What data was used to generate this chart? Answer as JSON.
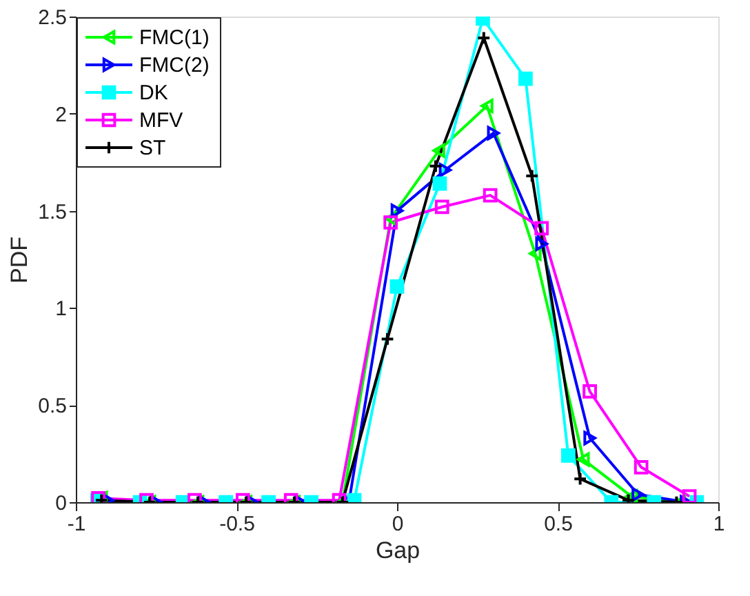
{
  "chart_data": {
    "type": "line",
    "xlabel": "Gap",
    "ylabel": "PDF",
    "xlim": [
      -1,
      1
    ],
    "ylim": [
      0,
      2.5
    ],
    "xticks": [
      -1,
      -0.5,
      0,
      0.5,
      1
    ],
    "yticks": [
      0,
      0.5,
      1,
      1.5,
      2,
      2.5
    ],
    "grid": false,
    "legend": "top left",
    "line_style": "solid",
    "series": [
      {
        "name": "FMC(1)",
        "color": "#00ff00",
        "marker": "triangle-left",
        "x": [
          -0.92,
          -0.77,
          -0.62,
          -0.47,
          -0.32,
          -0.17,
          -0.02,
          0.13,
          0.28,
          0.43,
          0.58,
          0.73,
          0.88
        ],
        "values": [
          0.02,
          0,
          0,
          0,
          0,
          0,
          1.46,
          1.81,
          2.04,
          1.28,
          0.22,
          0.03,
          0
        ]
      },
      {
        "name": "FMC(2)",
        "color": "#0000ff",
        "marker": "triangle-right",
        "x": [
          -0.9,
          -0.75,
          -0.6,
          -0.45,
          -0.3,
          -0.15,
          0,
          0.15,
          0.3,
          0.45,
          0.6,
          0.75,
          0.9
        ],
        "values": [
          0.01,
          0,
          0,
          0,
          0,
          0,
          1.5,
          1.71,
          1.9,
          1.33,
          0.33,
          0.04,
          0
        ]
      },
      {
        "name": "DK",
        "color": "#00ffff",
        "marker": "square",
        "x": [
          -0.933,
          -0.8,
          -0.667,
          -0.533,
          -0.4,
          -0.267,
          -0.133,
          0,
          0.133,
          0.267,
          0.4,
          0.533,
          0.667,
          0.8,
          0.933
        ],
        "values": [
          0.01,
          0,
          0,
          0,
          0,
          0,
          0.01,
          1.11,
          1.64,
          2.49,
          2.18,
          0.24,
          0,
          0,
          0
        ]
      },
      {
        "name": "MFV",
        "color": "#ff00ff",
        "marker": "square-open",
        "x": [
          -0.93,
          -0.78,
          -0.63,
          -0.48,
          -0.33,
          -0.18,
          -0.02,
          0.14,
          0.29,
          0.45,
          0.6,
          0.76,
          0.91
        ],
        "values": [
          0.02,
          0.01,
          0.01,
          0.01,
          0.01,
          0.01,
          1.44,
          1.52,
          1.58,
          1.41,
          0.57,
          0.18,
          0.03
        ]
      },
      {
        "name": "ST",
        "color": "#000000",
        "marker": "cross",
        "x": [
          -0.92,
          -0.77,
          -0.62,
          -0.47,
          -0.32,
          -0.17,
          -0.03,
          0.12,
          0.27,
          0.42,
          0.57,
          0.72,
          0.87
        ],
        "values": [
          0.01,
          0,
          0,
          0,
          0,
          0,
          0.84,
          1.73,
          2.39,
          1.68,
          0.12,
          0.01,
          0
        ]
      }
    ]
  }
}
